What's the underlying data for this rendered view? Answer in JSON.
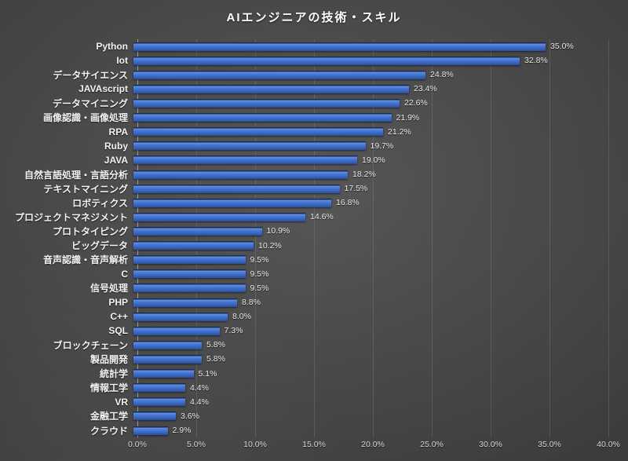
{
  "title": "AIエンジニアの技術・スキル",
  "colors": {
    "background_center": "#474747",
    "background_edge": "#151515",
    "bar_main": "#4472c4",
    "bar_highlight": "#6190e8",
    "bar_shadow": "#2c4d97",
    "title_text": "#ffffff",
    "label_text": "#f4f4f4",
    "value_text": "#e9e9e9",
    "tick_text": "#dadada"
  },
  "chart_data": {
    "type": "bar",
    "orientation": "horizontal",
    "title": "AIエンジニアの技術・スキル",
    "categories": [
      "Python",
      "Iot",
      "データサイエンス",
      "JAVAscript",
      "データマイニング",
      "画像認識・画像処理",
      "RPA",
      "Ruby",
      "JAVA",
      "自然言語処理・言語分析",
      "テキストマイニング",
      "ロボティクス",
      "プロジェクトマネジメント",
      "プロトタイピング",
      "ビッグデータ",
      "音声認識・音声解析",
      "C",
      "信号処理",
      "PHP",
      "C++",
      "SQL",
      "ブロックチェーン",
      "製品開発",
      "統計学",
      "情報工学",
      "VR",
      "金融工学",
      "クラウド"
    ],
    "values": [
      35.0,
      32.8,
      24.8,
      23.4,
      22.6,
      21.9,
      21.2,
      19.7,
      19.0,
      18.2,
      17.5,
      16.8,
      14.6,
      10.9,
      10.2,
      9.5,
      9.5,
      9.5,
      8.8,
      8.0,
      7.3,
      5.8,
      5.8,
      5.1,
      4.4,
      4.4,
      3.6,
      2.9
    ],
    "value_labels": [
      "35.0%",
      "32.8%",
      "24.8%",
      "23.4%",
      "22.6%",
      "21.9%",
      "21.2%",
      "19.7%",
      "19.0%",
      "18.2%",
      "17.5%",
      "16.8%",
      "14.6%",
      "10.9%",
      "10.2%",
      "9.5%",
      "9.5%",
      "9.5%",
      "8.8%",
      "8.0%",
      "7.3%",
      "5.8%",
      "5.8%",
      "5.1%",
      "4.4%",
      "4.4%",
      "3.6%",
      "2.9%"
    ],
    "xlabel": "",
    "ylabel": "",
    "xlim": [
      0,
      40
    ],
    "x_ticks": [
      "0.0%",
      "5.0%",
      "10.0%",
      "15.0%",
      "20.0%",
      "25.0%",
      "30.0%",
      "35.0%",
      "40.0%"
    ],
    "grid": true,
    "legend": false
  }
}
